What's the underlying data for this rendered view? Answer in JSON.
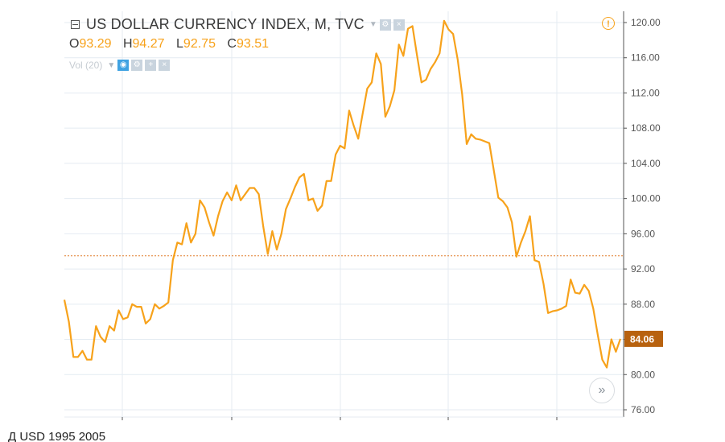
{
  "header": {
    "symbol_title": "US DOLLAR CURRENCY INDEX, M, TVC",
    "ohlc": {
      "o_key": "O",
      "o_value": "93.29",
      "h_key": "H",
      "h_value": "94.27",
      "l_key": "L",
      "l_value": "92.75",
      "c_key": "C",
      "c_value": "93.51"
    },
    "volume_label": "Vol (20)"
  },
  "icons": {
    "alert": "alert-icon",
    "scroll": "double-chevron-right-icon",
    "alert_glyph": "!",
    "scroll_glyph": "»"
  },
  "price_scale": {
    "ticks": [
      "120.00",
      "116.00",
      "112.00",
      "108.00",
      "104.00",
      "100.00",
      "96.00",
      "92.00",
      "88.00",
      "84.00",
      "80.00",
      "76.00"
    ],
    "current_price_label": "84.06",
    "reference_price": 93.5
  },
  "footer_text": "Д                                                                                        USD            1995     2005",
  "colors": {
    "line": "#f7a21b",
    "price_badge": "#b8620f",
    "grid": "#e4ebf2",
    "reference_line": "#e07b2a"
  },
  "chart_data": {
    "type": "line",
    "title": "US DOLLAR CURRENCY INDEX, M, TVC",
    "ylim": [
      76,
      120
    ],
    "grid": true,
    "series": [
      {
        "name": "US DOLLAR CURRENCY INDEX",
        "values": [
          88.5,
          86,
          82,
          82,
          82.7,
          81.7,
          81.7,
          85.5,
          84.3,
          83.7,
          85.5,
          85,
          87.3,
          86.3,
          86.5,
          88,
          87.7,
          87.7,
          85.8,
          86.3,
          88,
          87.5,
          87.8,
          88.2,
          93,
          95,
          94.8,
          97.2,
          95,
          96,
          99.8,
          99,
          97.3,
          95.8,
          98,
          99.7,
          100.7,
          99.8,
          101.5,
          99.8,
          100.5,
          101.2,
          101.2,
          100.5,
          96.8,
          93.7,
          96.3,
          94.2,
          96,
          98.8,
          100,
          101.3,
          102.4,
          102.8,
          99.8,
          100,
          98.6,
          99.2,
          102,
          102,
          105,
          106,
          105.7,
          110,
          108.3,
          106.8,
          109.7,
          112.5,
          113.2,
          116.5,
          115.3,
          109.3,
          110.5,
          112.3,
          117.5,
          116.2,
          119.3,
          119.6,
          116.3,
          113.2,
          113.5,
          114.7,
          115.5,
          116.5,
          120.2,
          119.2,
          118.7,
          115.8,
          111.8,
          106.2,
          107.3,
          106.8,
          106.7,
          106.5,
          106.3,
          103.2,
          100.1,
          99.7,
          99,
          97.3,
          93.4,
          95,
          96.3,
          98,
          93,
          92.8,
          90.3,
          87,
          87.2,
          87.3,
          87.5,
          87.8,
          90.8,
          89.3,
          89.2,
          90.2,
          89.5,
          87.5,
          84.5,
          81.7,
          80.8,
          84,
          82.6,
          84.06
        ]
      }
    ]
  }
}
